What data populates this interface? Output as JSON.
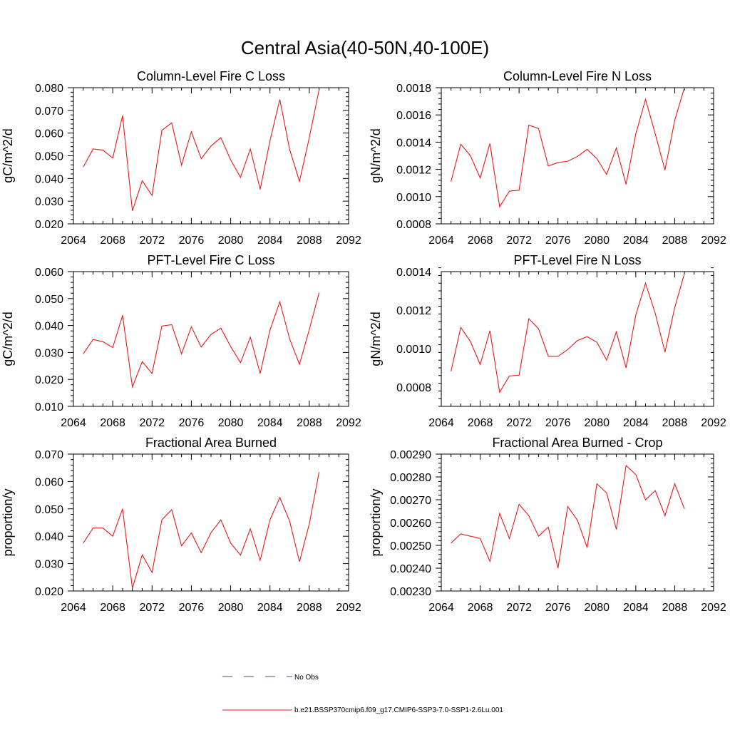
{
  "page": {
    "title": "Central Asia(40-50N,40-100E)"
  },
  "legend": {
    "entries": [
      {
        "label": "No Obs",
        "style": "dashed",
        "color": "#4a4a8c"
      },
      {
        "label": "b.e21.BSSP370cmip6.f09_g17.CMIP6-SSP3-7.0-SSP1-2.6Lu.001",
        "style": "solid",
        "color": "#e8191a"
      }
    ]
  },
  "chart_data": [
    {
      "type": "line",
      "title": "Column-Level Fire C Loss",
      "ylabel": "gC/m^2/d",
      "xlim": [
        2064,
        2092
      ],
      "ylim": [
        0.02,
        0.08
      ],
      "xticks": [
        2064,
        2068,
        2072,
        2076,
        2080,
        2084,
        2088,
        2092
      ],
      "xtick_labels": [
        "2064",
        "2068",
        "2072",
        "2076",
        "2080",
        "2084",
        "2088",
        "2092"
      ],
      "yticks": [
        0.02,
        0.03,
        0.04,
        0.05,
        0.06,
        0.07,
        0.08
      ],
      "ytick_labels": [
        "0.020",
        "0.030",
        "0.040",
        "0.050",
        "0.060",
        "0.070",
        "0.080"
      ],
      "grid": false,
      "series": [
        {
          "color": "#e8191a",
          "x": [
            2065,
            2066,
            2067,
            2068,
            2069,
            2070,
            2071,
            2072,
            2073,
            2074,
            2075,
            2076,
            2077,
            2078,
            2079,
            2080,
            2081,
            2082,
            2083,
            2084,
            2085,
            2086,
            2087,
            2088,
            2089
          ],
          "y": [
            0.045,
            0.053,
            0.0525,
            0.049,
            0.0677,
            0.0257,
            0.039,
            0.0325,
            0.0612,
            0.0645,
            0.0459,
            0.0606,
            0.0487,
            0.0543,
            0.058,
            0.0482,
            0.0405,
            0.053,
            0.0352,
            0.0566,
            0.0748,
            0.0528,
            0.0387,
            0.058,
            0.0792
          ]
        }
      ]
    },
    {
      "type": "line",
      "title": "Column-Level Fire N Loss",
      "ylabel": "gN/m^2/d",
      "xlim": [
        2064,
        2092
      ],
      "ylim": [
        0.0008,
        0.0018
      ],
      "xticks": [
        2064,
        2068,
        2072,
        2076,
        2080,
        2084,
        2088,
        2092
      ],
      "xtick_labels": [
        "2064",
        "2068",
        "2072",
        "2076",
        "2080",
        "2084",
        "2088",
        "2092"
      ],
      "yticks": [
        0.0008,
        0.001,
        0.0012,
        0.0014,
        0.0016,
        0.0018
      ],
      "ytick_labels": [
        "0.0008",
        "0.0010",
        "0.0012",
        "0.0014",
        "0.0016",
        "0.0018"
      ],
      "grid": false,
      "series": [
        {
          "color": "#e8191a",
          "x": [
            2065,
            2066,
            2067,
            2068,
            2069,
            2070,
            2071,
            2072,
            2073,
            2074,
            2075,
            2076,
            2077,
            2078,
            2079,
            2080,
            2081,
            2082,
            2083,
            2084,
            2085,
            2086,
            2087,
            2088,
            2089
          ],
          "y": [
            0.00111,
            0.001385,
            0.0013,
            0.001137,
            0.00139,
            0.000925,
            0.00104,
            0.001047,
            0.001525,
            0.0015,
            0.001225,
            0.00125,
            0.00126,
            0.001295,
            0.001347,
            0.001278,
            0.001163,
            0.001357,
            0.00109,
            0.00146,
            0.001715,
            0.00146,
            0.001195,
            0.00156,
            0.0018
          ]
        }
      ]
    },
    {
      "type": "line",
      "title": "PFT-Level Fire C Loss",
      "ylabel": "gC/m^2/d",
      "xlim": [
        2064,
        2092
      ],
      "ylim": [
        0.01,
        0.06
      ],
      "xticks": [
        2064,
        2068,
        2072,
        2076,
        2080,
        2084,
        2088,
        2092
      ],
      "xtick_labels": [
        "2064",
        "2068",
        "2072",
        "2076",
        "2080",
        "2084",
        "2088",
        "2092"
      ],
      "yticks": [
        0.01,
        0.02,
        0.03,
        0.04,
        0.05,
        0.06
      ],
      "ytick_labels": [
        "0.010",
        "0.020",
        "0.030",
        "0.040",
        "0.050",
        "0.060"
      ],
      "grid": false,
      "series": [
        {
          "color": "#e8191a",
          "x": [
            2065,
            2066,
            2067,
            2068,
            2069,
            2070,
            2071,
            2072,
            2073,
            2074,
            2075,
            2076,
            2077,
            2078,
            2079,
            2080,
            2081,
            2082,
            2083,
            2084,
            2085,
            2086,
            2087,
            2088,
            2089
          ],
          "y": [
            0.0295,
            0.0348,
            0.034,
            0.0318,
            0.0438,
            0.0172,
            0.0266,
            0.0222,
            0.0398,
            0.0403,
            0.0295,
            0.0395,
            0.032,
            0.0367,
            0.039,
            0.0322,
            0.0262,
            0.0357,
            0.0222,
            0.0383,
            0.0488,
            0.035,
            0.0256,
            0.0385,
            0.0522
          ]
        }
      ]
    },
    {
      "type": "line",
      "title": "PFT-Level Fire N Loss",
      "ylabel": "gN/m^2/d",
      "xlim": [
        2064,
        2092
      ],
      "ylim": [
        0.0007,
        0.0014
      ],
      "xticks": [
        2064,
        2068,
        2072,
        2076,
        2080,
        2084,
        2088,
        2092
      ],
      "xtick_labels": [
        "2064",
        "2068",
        "2072",
        "2076",
        "2080",
        "2084",
        "2088",
        "2092"
      ],
      "yticks": [
        0.0008,
        0.001,
        0.0012,
        0.0014
      ],
      "ytick_labels": [
        "0.0008",
        "0.0010",
        "0.0012",
        "0.0014"
      ],
      "grid": false,
      "series": [
        {
          "color": "#e8191a",
          "x": [
            2065,
            2066,
            2067,
            2068,
            2069,
            2070,
            2071,
            2072,
            2073,
            2074,
            2075,
            2076,
            2077,
            2078,
            2079,
            2080,
            2081,
            2082,
            2083,
            2084,
            2085,
            2086,
            2087,
            2088,
            2089
          ],
          "y": [
            0.000882,
            0.00111,
            0.001037,
            0.000917,
            0.001093,
            0.000773,
            0.000858,
            0.000862,
            0.001155,
            0.001103,
            0.00096,
            0.00096,
            0.000995,
            0.001042,
            0.001062,
            0.001033,
            0.00094,
            0.001087,
            0.0009,
            0.001175,
            0.00134,
            0.001183,
            0.000982,
            0.001213,
            0.00139
          ]
        }
      ]
    },
    {
      "type": "line",
      "title": "Fractional Area Burned",
      "ylabel": "proportion/y",
      "xlim": [
        2064,
        2092
      ],
      "ylim": [
        0.02,
        0.07
      ],
      "xticks": [
        2064,
        2068,
        2072,
        2076,
        2080,
        2084,
        2088,
        2092
      ],
      "xtick_labels": [
        "2064",
        "2068",
        "2072",
        "2076",
        "2080",
        "2084",
        "2088",
        "2092"
      ],
      "yticks": [
        0.02,
        0.03,
        0.04,
        0.05,
        0.06,
        0.07
      ],
      "ytick_labels": [
        "0.020",
        "0.030",
        "0.040",
        "0.050",
        "0.060",
        "0.070"
      ],
      "grid": false,
      "series": [
        {
          "color": "#e8191a",
          "x": [
            2065,
            2066,
            2067,
            2068,
            2069,
            2070,
            2071,
            2072,
            2073,
            2074,
            2075,
            2076,
            2077,
            2078,
            2079,
            2080,
            2081,
            2082,
            2083,
            2084,
            2085,
            2086,
            2087,
            2088,
            2089
          ],
          "y": [
            0.0375,
            0.043,
            0.043,
            0.04,
            0.05,
            0.021,
            0.0332,
            0.0268,
            0.046,
            0.0497,
            0.0365,
            0.0412,
            0.034,
            0.0413,
            0.046,
            0.0375,
            0.0331,
            0.0427,
            0.0312,
            0.046,
            0.0541,
            0.0455,
            0.0307,
            0.0445,
            0.0635
          ]
        }
      ]
    },
    {
      "type": "line",
      "title": "Fractional Area Burned - Crop",
      "ylabel": "proportion/y",
      "xlim": [
        2064,
        2092
      ],
      "ylim": [
        0.0023,
        0.0029
      ],
      "xticks": [
        2064,
        2068,
        2072,
        2076,
        2080,
        2084,
        2088,
        2092
      ],
      "xtick_labels": [
        "2064",
        "2068",
        "2072",
        "2076",
        "2080",
        "2084",
        "2088",
        "2092"
      ],
      "yticks": [
        0.0023,
        0.0024,
        0.0025,
        0.0026,
        0.0027,
        0.0028,
        0.0029
      ],
      "ytick_labels": [
        "0.00230",
        "0.00240",
        "0.00250",
        "0.00260",
        "0.00270",
        "0.00280",
        "0.00290"
      ],
      "grid": false,
      "series": [
        {
          "color": "#e8191a",
          "x": [
            2065,
            2066,
            2067,
            2068,
            2069,
            2070,
            2071,
            2072,
            2073,
            2074,
            2075,
            2076,
            2077,
            2078,
            2079,
            2080,
            2081,
            2082,
            2083,
            2084,
            2085,
            2086,
            2087,
            2088,
            2089
          ],
          "y": [
            0.00251,
            0.00255,
            0.00254,
            0.00253,
            0.00243,
            0.00264,
            0.00253,
            0.00268,
            0.00263,
            0.00254,
            0.00258,
            0.0024,
            0.00267,
            0.00261,
            0.00249,
            0.00277,
            0.00273,
            0.00257,
            0.00285,
            0.00281,
            0.0027,
            0.00274,
            0.00263,
            0.00277,
            0.00266
          ]
        }
      ]
    }
  ]
}
